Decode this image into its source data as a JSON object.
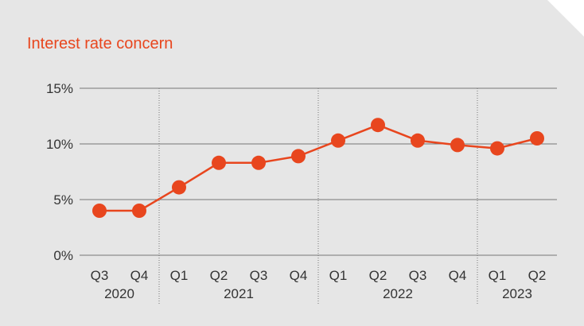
{
  "colors": {
    "background": "#e6e6e6",
    "accent": "#e8461e",
    "gridline": "#777777",
    "text": "#333333"
  },
  "chart_data": {
    "type": "line",
    "title": "Interest rate concern",
    "xlabel": "",
    "ylabel": "",
    "ylim": [
      0,
      15
    ],
    "yticks": [
      "0%",
      "5%",
      "10%",
      "15%"
    ],
    "ytick_values": [
      0,
      5,
      10,
      15
    ],
    "grid": true,
    "legend": "none",
    "quarter_labels": [
      "Q3",
      "Q4",
      "Q1",
      "Q2",
      "Q3",
      "Q4",
      "Q1",
      "Q2",
      "Q3",
      "Q4",
      "Q1",
      "Q2"
    ],
    "year_groups": [
      {
        "label": "2020",
        "quarters": 2
      },
      {
        "label": "2021",
        "quarters": 4
      },
      {
        "label": "2022",
        "quarters": 4
      },
      {
        "label": "2023",
        "quarters": 2
      }
    ],
    "series": [
      {
        "values": [
          4.0,
          4.0,
          6.1,
          8.3,
          8.3,
          8.9,
          10.3,
          11.7,
          10.3,
          9.9,
          9.6,
          10.5
        ]
      }
    ]
  }
}
